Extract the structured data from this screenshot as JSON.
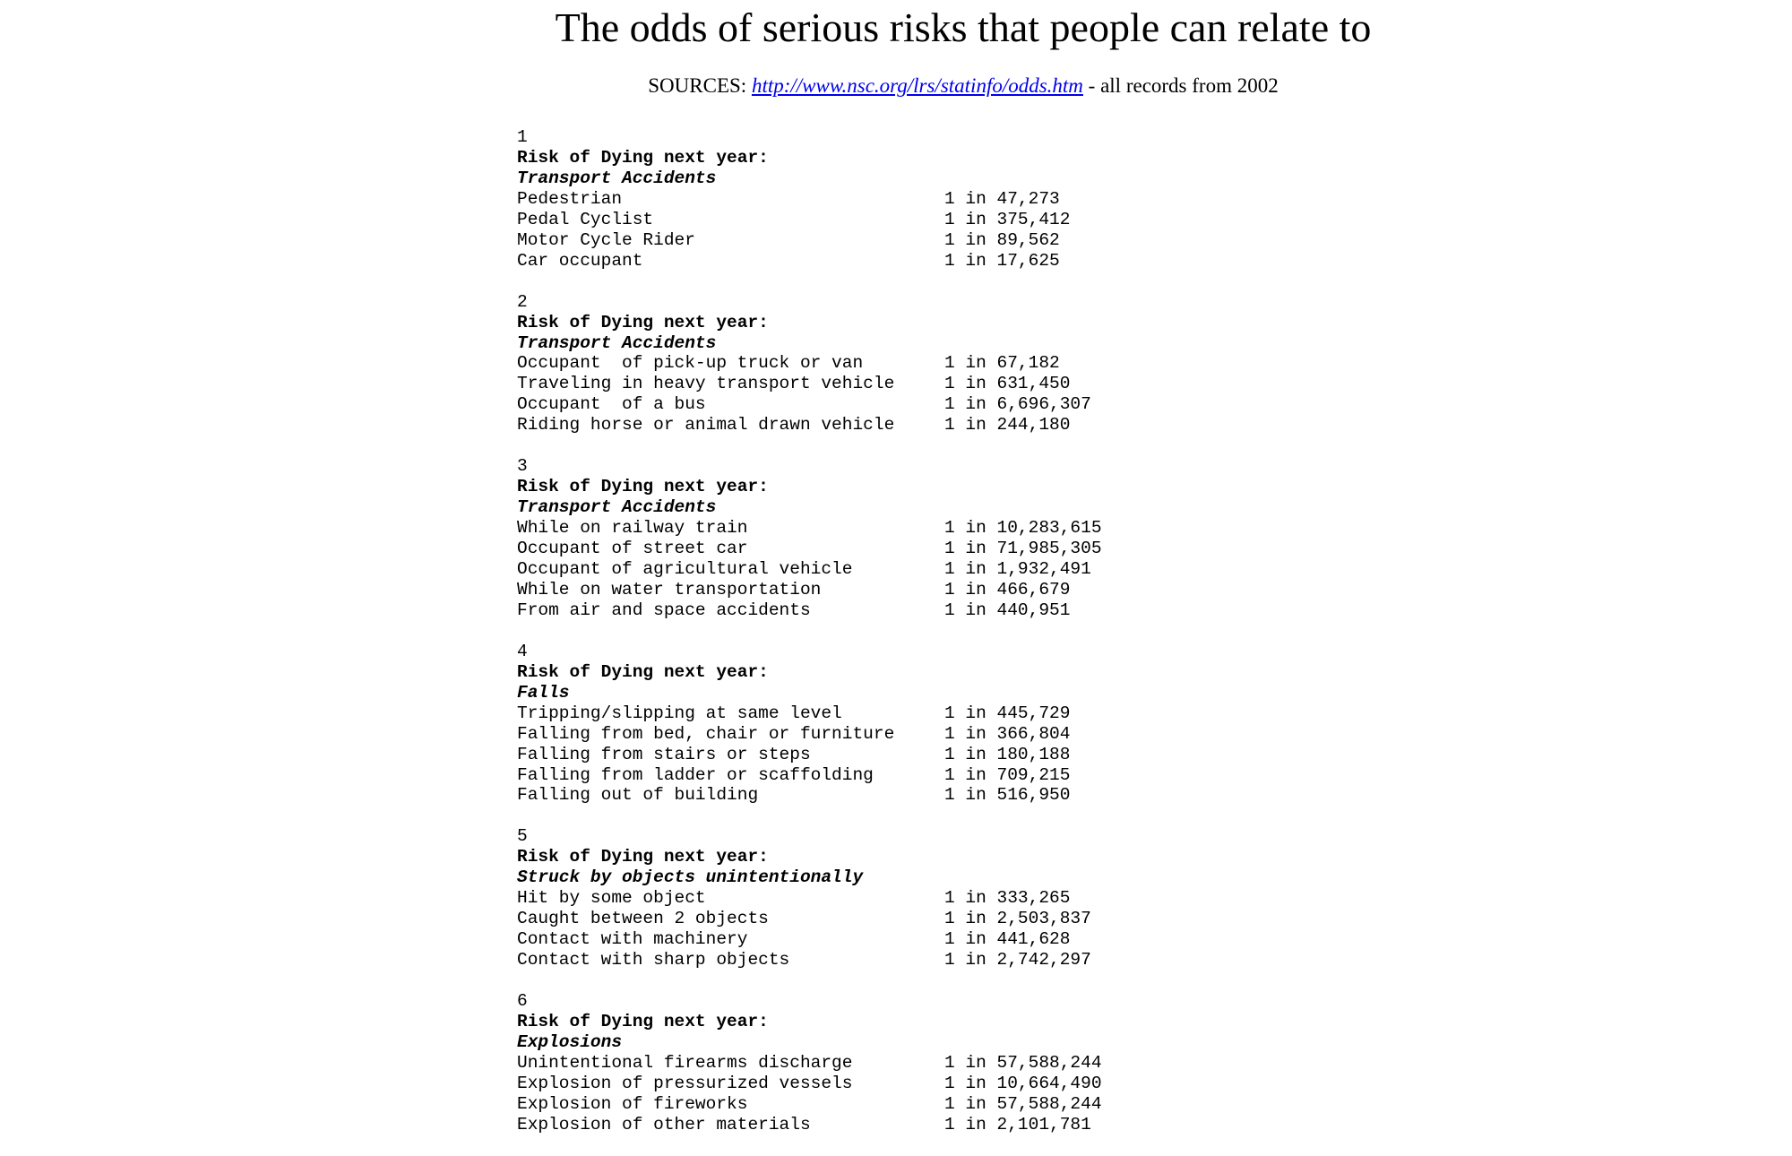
{
  "header": {
    "title": "The odds of serious risks that people can relate to",
    "sources_label": "SOURCES:",
    "link": "http://www.nsc.org/lrs/statinfo/odds.htm",
    "suffix": "- all records from 2002"
  },
  "sections": [
    {
      "number": "1",
      "heading": "Risk of Dying next year:",
      "category": "Transport Accidents",
      "rows": [
        {
          "label": "Pedestrian",
          "value": "1 in 47,273"
        },
        {
          "label": "Pedal Cyclist",
          "value": "1 in 375,412"
        },
        {
          "label": "Motor Cycle Rider",
          "value": "1 in 89,562"
        },
        {
          "label": "Car occupant",
          "value": "1 in 17,625"
        }
      ]
    },
    {
      "number": "2",
      "heading": "Risk of Dying next year:",
      "category": "Transport Accidents",
      "rows": [
        {
          "label": "Occupant  of pick-up truck or van",
          "value": "1 in 67,182"
        },
        {
          "label": "Traveling in heavy transport vehicle",
          "value": "1 in 631,450"
        },
        {
          "label": "Occupant  of a bus",
          "value": "1 in 6,696,307"
        },
        {
          "label": "Riding horse or animal drawn vehicle",
          "value": "1 in 244,180"
        }
      ]
    },
    {
      "number": "3",
      "heading": "Risk of Dying next year:",
      "category": "Transport Accidents",
      "rows": [
        {
          "label": "While on railway train",
          "value": "1 in 10,283,615"
        },
        {
          "label": "Occupant of street car",
          "value": "1 in 71,985,305"
        },
        {
          "label": "Occupant of agricultural vehicle",
          "value": "1 in 1,932,491"
        },
        {
          "label": "While on water transportation",
          "value": "1 in 466,679"
        },
        {
          "label": "From air and space accidents",
          "value": "1 in 440,951"
        }
      ]
    },
    {
      "number": "4",
      "heading": "Risk of Dying next year:",
      "category": "Falls",
      "rows": [
        {
          "label": "Tripping/slipping at same level",
          "value": "1 in 445,729"
        },
        {
          "label": "Falling from bed, chair or furniture",
          "value": "1 in 366,804"
        },
        {
          "label": "Falling from stairs or steps",
          "value": "1 in 180,188"
        },
        {
          "label": "Falling from ladder or scaffolding",
          "value": "1 in 709,215"
        },
        {
          "label": "Falling out of building",
          "value": "1 in 516,950"
        }
      ]
    },
    {
      "number": "5",
      "heading": "Risk of Dying next year:",
      "category": "Struck by objects unintentionally",
      "rows": [
        {
          "label": "Hit by some object",
          "value": "1 in 333,265"
        },
        {
          "label": "Caught between 2 objects",
          "value": "1 in 2,503,837"
        },
        {
          "label": "Contact with machinery",
          "value": "1 in 441,628"
        },
        {
          "label": "Contact with sharp objects",
          "value": "1 in 2,742,297"
        }
      ]
    },
    {
      "number": "6",
      "heading": "Risk of Dying next year:",
      "category": "Explosions",
      "rows": [
        {
          "label": "Unintentional firearms discharge",
          "value": "1 in 57,588,244"
        },
        {
          "label": "Explosion of pressurized vessels",
          "value": "1 in 10,664,490"
        },
        {
          "label": "Explosion of fireworks",
          "value": "1 in 57,588,244"
        },
        {
          "label": "Explosion of other materials",
          "value": "1 in 2,101,781"
        }
      ]
    }
  ]
}
